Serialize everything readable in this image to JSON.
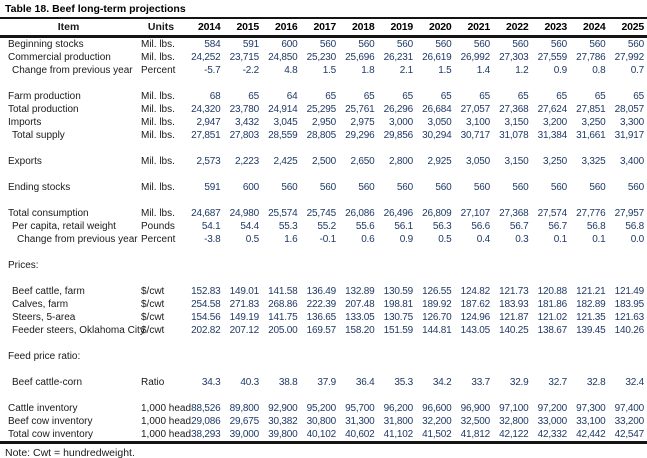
{
  "title": "Table 18. Beef long-term projections",
  "note": "Note: Cwt = hundredweight.",
  "colors": {
    "value_text": "#1f3a66",
    "label_text": "#1a1a1a",
    "rule": "#141414",
    "background": "#ffffff"
  },
  "table": {
    "columns": {
      "item": "Item",
      "units": "Units",
      "years": [
        "2014",
        "2015",
        "2016",
        "2017",
        "2018",
        "2019",
        "2020",
        "2021",
        "2022",
        "2023",
        "2024",
        "2025"
      ]
    },
    "rows": [
      {
        "type": "data",
        "label": "Beginning stocks",
        "units": "Mil. lbs.",
        "indent": 0,
        "values": [
          "584",
          "591",
          "600",
          "560",
          "560",
          "560",
          "560",
          "560",
          "560",
          "560",
          "560",
          "560"
        ]
      },
      {
        "type": "data",
        "label": "Commercial production",
        "units": "Mil. lbs.",
        "indent": 0,
        "values": [
          "24,252",
          "23,715",
          "24,850",
          "25,230",
          "25,696",
          "26,231",
          "26,619",
          "26,992",
          "27,303",
          "27,559",
          "27,786",
          "27,992"
        ]
      },
      {
        "type": "data",
        "label": "Change from previous year",
        "units": "Percent",
        "indent": 1,
        "values": [
          "-5.7",
          "-2.2",
          "4.8",
          "1.5",
          "1.8",
          "2.1",
          "1.5",
          "1.4",
          "1.2",
          "0.9",
          "0.8",
          "0.7"
        ]
      },
      {
        "type": "spacer"
      },
      {
        "type": "data",
        "label": "Farm production",
        "units": "Mil. lbs.",
        "indent": 0,
        "values": [
          "68",
          "65",
          "64",
          "65",
          "65",
          "65",
          "65",
          "65",
          "65",
          "65",
          "65",
          "65"
        ]
      },
      {
        "type": "data",
        "label": "Total production",
        "units": "Mil. lbs.",
        "indent": 0,
        "values": [
          "24,320",
          "23,780",
          "24,914",
          "25,295",
          "25,761",
          "26,296",
          "26,684",
          "27,057",
          "27,368",
          "27,624",
          "27,851",
          "28,057"
        ]
      },
      {
        "type": "data",
        "label": "Imports",
        "units": "Mil. lbs.",
        "indent": 0,
        "values": [
          "2,947",
          "3,432",
          "3,045",
          "2,950",
          "2,975",
          "3,000",
          "3,050",
          "3,100",
          "3,150",
          "3,200",
          "3,250",
          "3,300"
        ]
      },
      {
        "type": "data",
        "label": "Total supply",
        "units": "Mil. lbs.",
        "indent": 1,
        "values": [
          "27,851",
          "27,803",
          "28,559",
          "28,805",
          "29,296",
          "29,856",
          "30,294",
          "30,717",
          "31,078",
          "31,384",
          "31,661",
          "31,917"
        ]
      },
      {
        "type": "spacer"
      },
      {
        "type": "data",
        "label": "Exports",
        "units": "Mil. lbs.",
        "indent": 0,
        "values": [
          "2,573",
          "2,223",
          "2,425",
          "2,500",
          "2,650",
          "2,800",
          "2,925",
          "3,050",
          "3,150",
          "3,250",
          "3,325",
          "3,400"
        ]
      },
      {
        "type": "spacer"
      },
      {
        "type": "data",
        "label": "Ending stocks",
        "units": "Mil. lbs.",
        "indent": 0,
        "values": [
          "591",
          "600",
          "560",
          "560",
          "560",
          "560",
          "560",
          "560",
          "560",
          "560",
          "560",
          "560"
        ]
      },
      {
        "type": "spacer"
      },
      {
        "type": "data",
        "label": "Total consumption",
        "units": "Mil. lbs.",
        "indent": 0,
        "values": [
          "24,687",
          "24,980",
          "25,574",
          "25,745",
          "26,086",
          "26,496",
          "26,809",
          "27,107",
          "27,368",
          "27,574",
          "27,776",
          "27,957"
        ]
      },
      {
        "type": "data",
        "label": "Per capita, retail weight",
        "units": "Pounds",
        "indent": 1,
        "values": [
          "54.1",
          "54.4",
          "55.3",
          "55.2",
          "55.6",
          "56.1",
          "56.3",
          "56.6",
          "56.7",
          "56.7",
          "56.8",
          "56.8"
        ]
      },
      {
        "type": "data",
        "label": "Change from previous year",
        "units": "Percent",
        "indent": 2,
        "values": [
          "-3.8",
          "0.5",
          "1.6",
          "-0.1",
          "0.6",
          "0.9",
          "0.5",
          "0.4",
          "0.3",
          "0.1",
          "0.1",
          "0.0"
        ]
      },
      {
        "type": "spacer"
      },
      {
        "type": "section",
        "label": "Prices:"
      },
      {
        "type": "spacer"
      },
      {
        "type": "data",
        "label": "Beef cattle, farm",
        "units": "$/cwt",
        "indent": 1,
        "values": [
          "152.83",
          "149.01",
          "141.58",
          "136.49",
          "132.89",
          "130.59",
          "126.55",
          "124.82",
          "121.73",
          "120.88",
          "121.21",
          "121.49"
        ]
      },
      {
        "type": "data",
        "label": "Calves, farm",
        "units": "$/cwt",
        "indent": 1,
        "values": [
          "254.58",
          "271.83",
          "268.86",
          "222.39",
          "207.48",
          "198.81",
          "189.92",
          "187.62",
          "183.93",
          "181.86",
          "182.89",
          "183.95"
        ]
      },
      {
        "type": "data",
        "label": "Steers, 5-area",
        "units": "$/cwt",
        "indent": 1,
        "values": [
          "154.56",
          "149.19",
          "141.75",
          "136.65",
          "133.05",
          "130.75",
          "126.70",
          "124.96",
          "121.87",
          "121.02",
          "121.35",
          "121.63"
        ]
      },
      {
        "type": "data",
        "label": "Feeder steers, Oklahoma City",
        "units": "$/cwt",
        "indent": 1,
        "values": [
          "202.82",
          "207.12",
          "205.00",
          "169.57",
          "158.20",
          "151.59",
          "144.81",
          "143.05",
          "140.25",
          "138.67",
          "139.45",
          "140.26"
        ]
      },
      {
        "type": "spacer"
      },
      {
        "type": "section",
        "label": "Feed price ratio:"
      },
      {
        "type": "spacer"
      },
      {
        "type": "data",
        "label": "Beef cattle-corn",
        "units": "Ratio",
        "indent": 1,
        "values": [
          "34.3",
          "40.3",
          "38.8",
          "37.9",
          "36.4",
          "35.3",
          "34.2",
          "33.7",
          "32.9",
          "32.7",
          "32.8",
          "32.4"
        ]
      },
      {
        "type": "spacer"
      },
      {
        "type": "data",
        "label": "Cattle inventory",
        "units": "1,000 head",
        "indent": 0,
        "values": [
          "88,526",
          "89,800",
          "92,900",
          "95,200",
          "95,700",
          "96,200",
          "96,600",
          "96,900",
          "97,100",
          "97,200",
          "97,300",
          "97,400"
        ]
      },
      {
        "type": "data",
        "label": "Beef cow inventory",
        "units": "1,000 head",
        "indent": 0,
        "values": [
          "29,086",
          "29,675",
          "30,382",
          "30,800",
          "31,300",
          "31,800",
          "32,200",
          "32,500",
          "32,800",
          "33,000",
          "33,100",
          "33,200"
        ]
      },
      {
        "type": "data",
        "label": "Total cow inventory",
        "units": "1,000 head",
        "indent": 0,
        "values": [
          "38,293",
          "39,000",
          "39,800",
          "40,102",
          "40,602",
          "41,102",
          "41,502",
          "41,812",
          "42,122",
          "42,332",
          "42,442",
          "42,547"
        ]
      }
    ]
  }
}
